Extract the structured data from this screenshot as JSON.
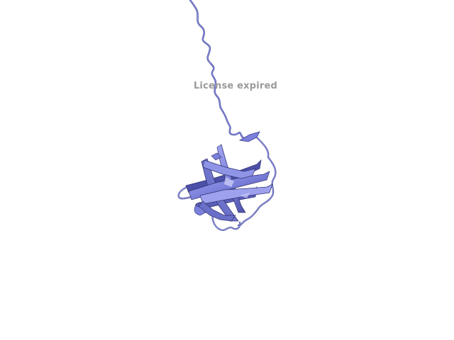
{
  "viewer": {
    "watermark_text": "License expired",
    "background_color": "#ffffff",
    "ribbon_color": "#7b80db",
    "ribbon_shadow_color": "#3c3f8f",
    "watermark_color": "#9a9a9a"
  },
  "structure": {
    "representation": "cartoon",
    "elements": [
      "disordered-coil-tail",
      "beta-barrel-domain",
      "loops",
      "small-helix"
    ]
  }
}
